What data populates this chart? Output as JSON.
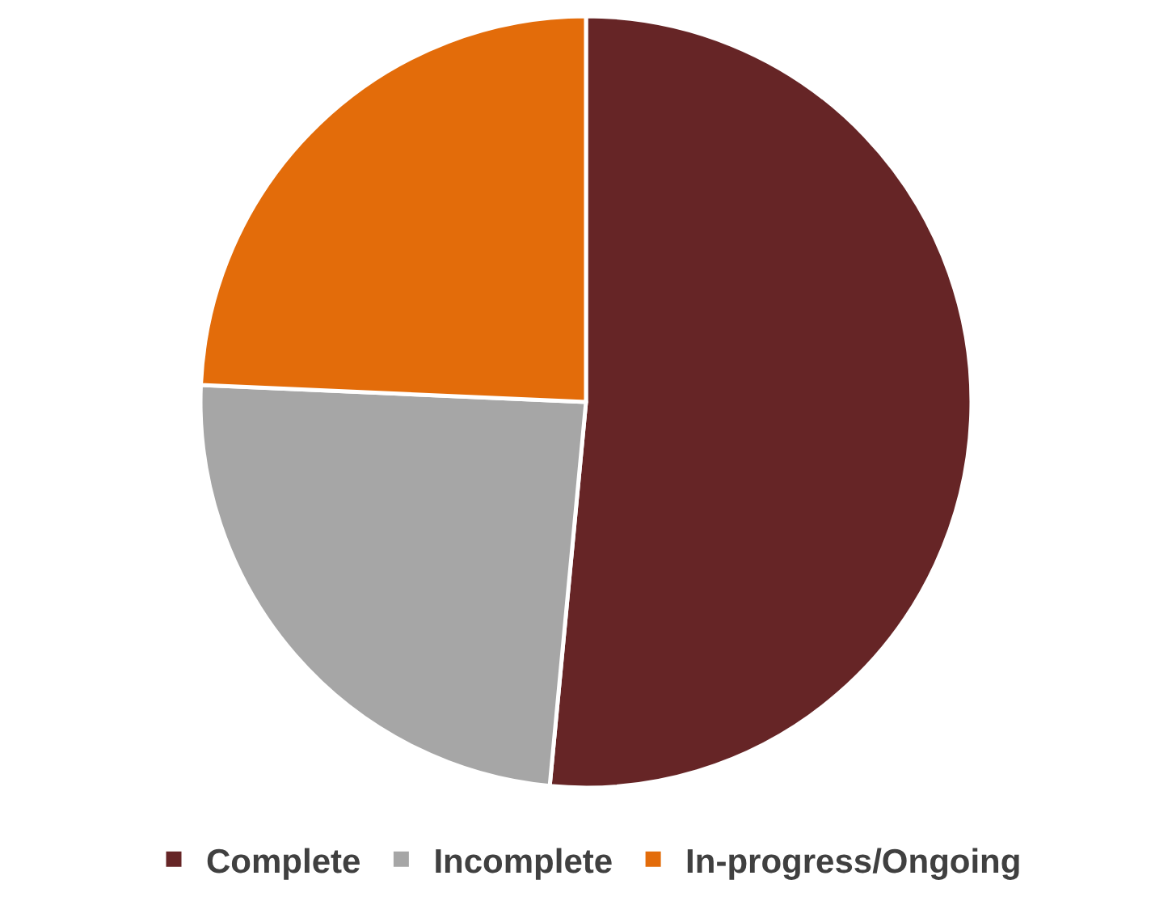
{
  "chart_data": {
    "type": "pie",
    "categories": [
      "Complete",
      "Incomplete",
      "In-progress/Ongoing"
    ],
    "values": [
      51.5,
      24.2,
      24.3
    ],
    "colors": [
      "#662526",
      "#a6a6a6",
      "#e36c0a"
    ],
    "legend": "bottom"
  }
}
